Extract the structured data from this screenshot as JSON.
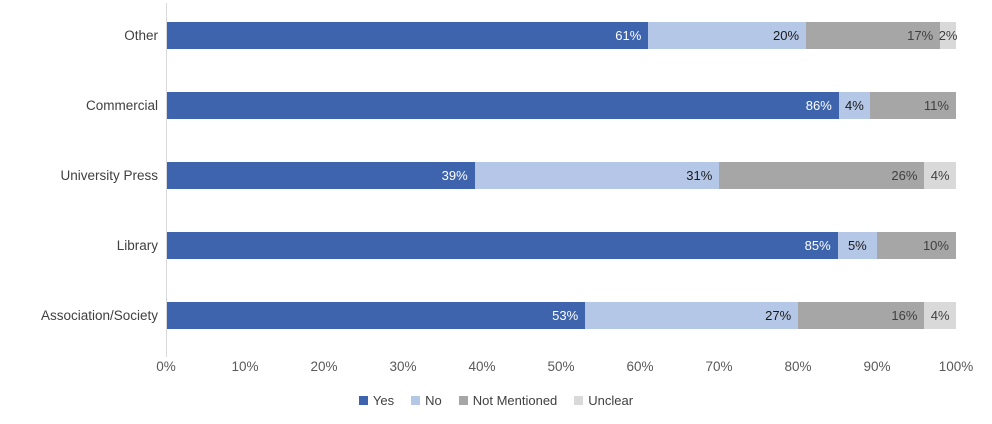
{
  "chart_data": {
    "type": "bar",
    "orientation": "horizontal",
    "stacked": true,
    "title": "",
    "xlabel": "",
    "ylabel": "",
    "xlim": [
      0,
      100
    ],
    "grid": false,
    "legend_position": "bottom",
    "value_suffix": "%",
    "categories": [
      "Other",
      "Commercial",
      "University Press",
      "Library",
      "Association/Society"
    ],
    "series": [
      {
        "name": "Yes",
        "color": "#3e64ad",
        "label_color": "#ffffff",
        "values": [
          61,
          86,
          39,
          85,
          53
        ]
      },
      {
        "name": "No",
        "color": "#b4c7e7",
        "label_color": "#1a1a1a",
        "values": [
          20,
          4,
          31,
          5,
          27
        ]
      },
      {
        "name": "Not Mentioned",
        "color": "#a6a6a6",
        "label_color": "#404040",
        "values": [
          17,
          11,
          26,
          10,
          16
        ]
      },
      {
        "name": "Unclear",
        "color": "#d9d9d9",
        "label_color": "#404040",
        "values": [
          2,
          0,
          4,
          0,
          4
        ]
      }
    ],
    "x_ticks": [
      "0%",
      "10%",
      "20%",
      "30%",
      "40%",
      "50%",
      "60%",
      "70%",
      "80%",
      "90%",
      "100%"
    ],
    "axis_color": "#d9d9d9",
    "tick_label_color": "#595959",
    "category_label_color": "#404040"
  }
}
